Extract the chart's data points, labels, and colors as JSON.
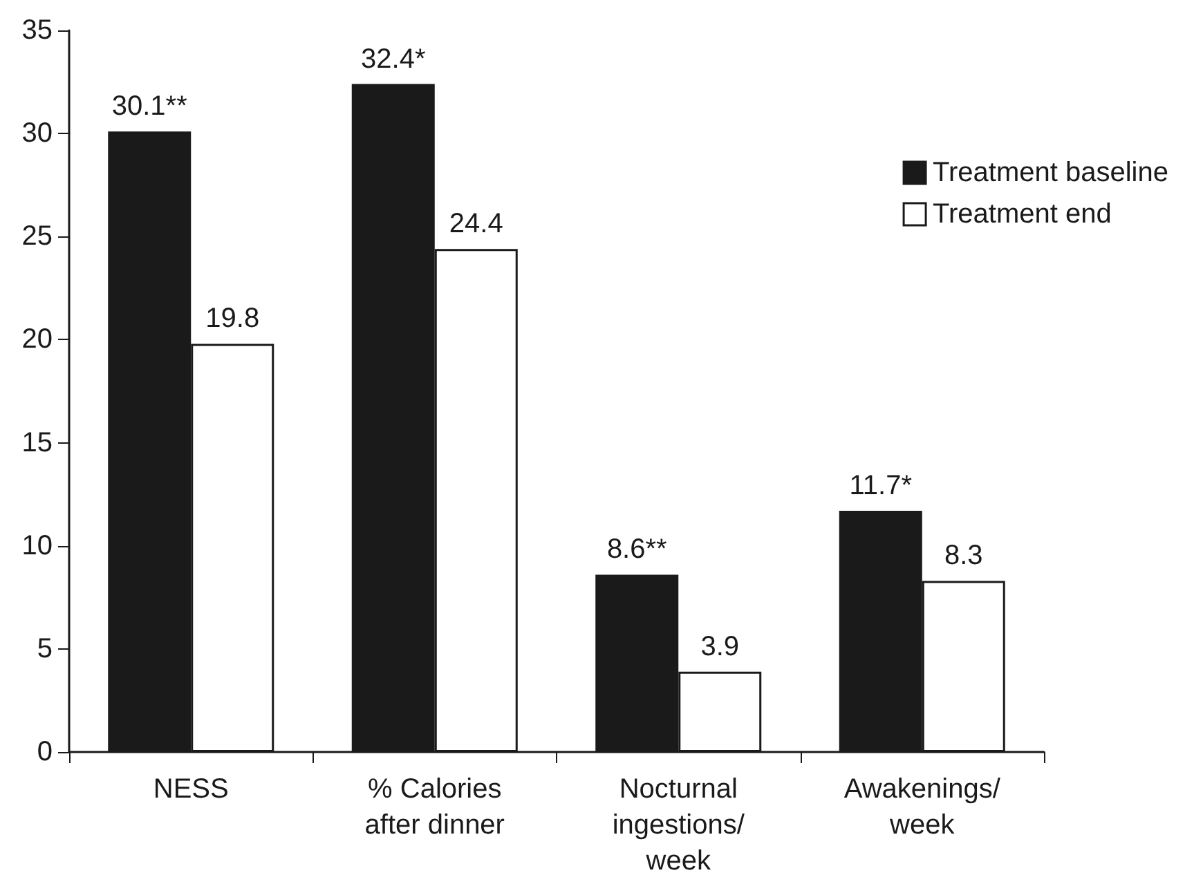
{
  "chart_data": {
    "type": "bar",
    "categories": [
      "NESS",
      "% Calories\nafter dinner",
      "Nocturnal\ningestions/\nweek",
      "Awakenings/\nweek"
    ],
    "series": [
      {
        "name": "Treatment baseline",
        "color": "#1a1a1a",
        "values": [
          30.1,
          32.4,
          8.6,
          11.7
        ],
        "value_labels": [
          "30.1**",
          "32.4*",
          "8.6**",
          "11.7*"
        ]
      },
      {
        "name": "Treatment end",
        "color": "#ffffff",
        "values": [
          19.8,
          24.4,
          3.9,
          8.3
        ],
        "value_labels": [
          "19.8",
          "24.4",
          "3.9",
          "8.3"
        ]
      }
    ],
    "ylim": [
      0,
      35
    ],
    "yticks": [
      0,
      5,
      10,
      15,
      20,
      25,
      30,
      35
    ],
    "grid": false,
    "legend": "top right"
  }
}
